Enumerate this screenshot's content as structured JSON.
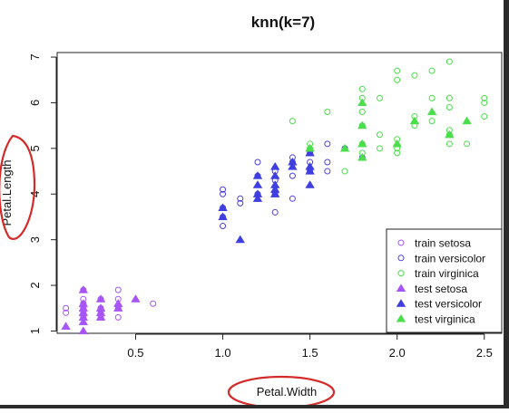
{
  "chart_data": {
    "type": "scatter",
    "title": "knn(k=7)",
    "xlabel": "Petal.Width",
    "ylabel": "Petal.Length",
    "xlim": [
      0.05,
      2.6
    ],
    "ylim": [
      0.95,
      7.1
    ],
    "x_ticks": [
      "0.5",
      "1.0",
      "1.5",
      "2.0",
      "2.5"
    ],
    "y_ticks": [
      "1",
      "2",
      "3",
      "4",
      "5",
      "6",
      "7"
    ],
    "legend_position": "bottom-right",
    "series": [
      {
        "name": "train setosa",
        "marker": "open-circle",
        "color": "#A855F7",
        "points": [
          [
            0.1,
            1.4
          ],
          [
            0.1,
            1.5
          ],
          [
            0.2,
            1.3
          ],
          [
            0.2,
            1.4
          ],
          [
            0.2,
            1.5
          ],
          [
            0.2,
            1.6
          ],
          [
            0.2,
            1.7
          ],
          [
            0.2,
            1.9
          ],
          [
            0.3,
            1.3
          ],
          [
            0.3,
            1.4
          ],
          [
            0.3,
            1.5
          ],
          [
            0.3,
            1.7
          ],
          [
            0.4,
            1.3
          ],
          [
            0.4,
            1.5
          ],
          [
            0.4,
            1.7
          ],
          [
            0.4,
            1.9
          ],
          [
            0.6,
            1.6
          ]
        ]
      },
      {
        "name": "train versicolor",
        "marker": "open-circle",
        "color": "#4B3FE0",
        "points": [
          [
            1.0,
            3.3
          ],
          [
            1.0,
            3.5
          ],
          [
            1.0,
            3.7
          ],
          [
            1.0,
            4.0
          ],
          [
            1.0,
            4.1
          ],
          [
            1.1,
            3.8
          ],
          [
            1.1,
            3.9
          ],
          [
            1.2,
            4.0
          ],
          [
            1.2,
            4.4
          ],
          [
            1.2,
            4.7
          ],
          [
            1.3,
            3.6
          ],
          [
            1.3,
            4.0
          ],
          [
            1.3,
            4.3
          ],
          [
            1.3,
            4.5
          ],
          [
            1.4,
            3.9
          ],
          [
            1.4,
            4.4
          ],
          [
            1.4,
            4.7
          ],
          [
            1.4,
            4.8
          ],
          [
            1.5,
            4.5
          ],
          [
            1.5,
            4.7
          ],
          [
            1.5,
            4.9
          ],
          [
            1.6,
            4.5
          ],
          [
            1.6,
            4.7
          ],
          [
            1.6,
            5.1
          ],
          [
            1.7,
            5.0
          ],
          [
            1.8,
            4.8
          ]
        ]
      },
      {
        "name": "train virginica",
        "marker": "open-circle",
        "color": "#4ADE4A",
        "points": [
          [
            1.4,
            5.6
          ],
          [
            1.5,
            5.0
          ],
          [
            1.5,
            5.1
          ],
          [
            1.6,
            5.8
          ],
          [
            1.7,
            4.5
          ],
          [
            1.8,
            4.9
          ],
          [
            1.8,
            5.1
          ],
          [
            1.8,
            5.5
          ],
          [
            1.8,
            5.8
          ],
          [
            1.8,
            6.1
          ],
          [
            1.8,
            6.3
          ],
          [
            1.9,
            5.0
          ],
          [
            1.9,
            5.3
          ],
          [
            1.9,
            6.1
          ],
          [
            2.0,
            4.9
          ],
          [
            2.0,
            5.0
          ],
          [
            2.0,
            5.2
          ],
          [
            2.0,
            6.5
          ],
          [
            2.0,
            6.7
          ],
          [
            2.1,
            5.5
          ],
          [
            2.1,
            5.7
          ],
          [
            2.1,
            6.6
          ],
          [
            2.2,
            5.6
          ],
          [
            2.2,
            6.1
          ],
          [
            2.2,
            6.7
          ],
          [
            2.3,
            5.1
          ],
          [
            2.3,
            5.3
          ],
          [
            2.3,
            5.4
          ],
          [
            2.3,
            5.9
          ],
          [
            2.3,
            6.1
          ],
          [
            2.3,
            6.9
          ],
          [
            2.4,
            5.1
          ],
          [
            2.5,
            5.7
          ],
          [
            2.5,
            6.0
          ],
          [
            2.5,
            6.1
          ]
        ]
      },
      {
        "name": "test setosa",
        "marker": "filled-triangle",
        "color": "#A855F7",
        "points": [
          [
            0.1,
            1.1
          ],
          [
            0.2,
            1.0
          ],
          [
            0.2,
            1.2
          ],
          [
            0.2,
            1.3
          ],
          [
            0.2,
            1.4
          ],
          [
            0.2,
            1.5
          ],
          [
            0.2,
            1.6
          ],
          [
            0.2,
            1.9
          ],
          [
            0.3,
            1.3
          ],
          [
            0.3,
            1.4
          ],
          [
            0.3,
            1.5
          ],
          [
            0.3,
            1.7
          ],
          [
            0.4,
            1.5
          ],
          [
            0.4,
            1.6
          ],
          [
            0.5,
            1.7
          ]
        ]
      },
      {
        "name": "test versicolor",
        "marker": "filled-triangle",
        "color": "#3F3FE0",
        "points": [
          [
            1.0,
            3.5
          ],
          [
            1.0,
            3.7
          ],
          [
            1.1,
            3.0
          ],
          [
            1.2,
            3.9
          ],
          [
            1.2,
            4.0
          ],
          [
            1.2,
            4.2
          ],
          [
            1.2,
            4.4
          ],
          [
            1.3,
            4.0
          ],
          [
            1.3,
            4.1
          ],
          [
            1.3,
            4.2
          ],
          [
            1.3,
            4.4
          ],
          [
            1.3,
            4.6
          ],
          [
            1.4,
            4.6
          ],
          [
            1.4,
            4.7
          ],
          [
            1.5,
            4.2
          ],
          [
            1.5,
            4.5
          ],
          [
            1.5,
            4.6
          ],
          [
            1.5,
            4.9
          ]
        ]
      },
      {
        "name": "test virginica",
        "marker": "filled-triangle",
        "color": "#4ADE4A",
        "points": [
          [
            1.5,
            5.0
          ],
          [
            1.7,
            5.0
          ],
          [
            1.8,
            4.8
          ],
          [
            1.8,
            5.1
          ],
          [
            1.8,
            5.5
          ],
          [
            1.8,
            6.0
          ],
          [
            2.0,
            5.1
          ],
          [
            2.1,
            5.6
          ],
          [
            2.2,
            5.8
          ],
          [
            2.3,
            5.3
          ],
          [
            2.4,
            5.6
          ]
        ]
      }
    ]
  },
  "annotation_color": "#D42A2A"
}
